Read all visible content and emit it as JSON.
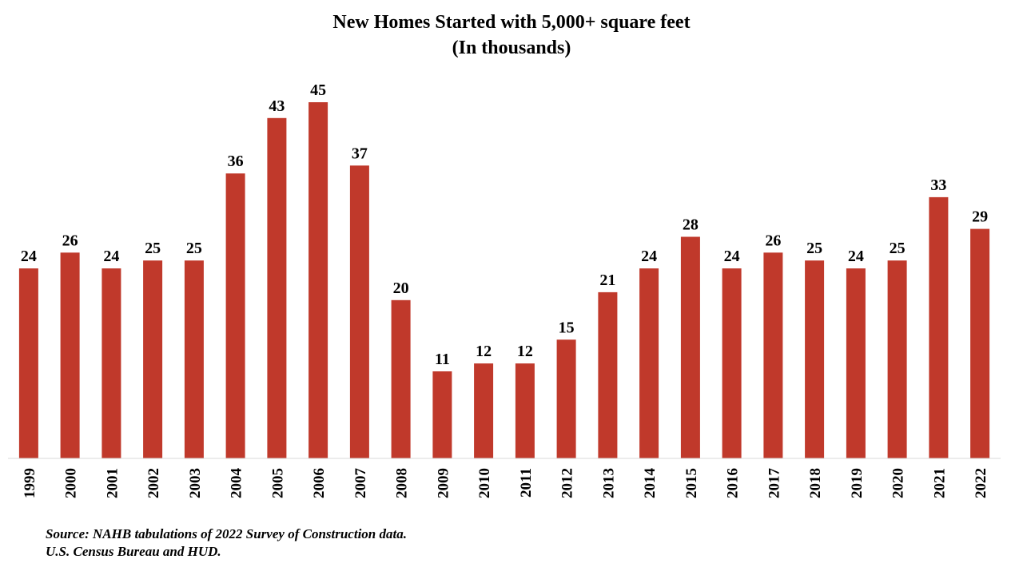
{
  "chart_data": {
    "type": "bar",
    "title": "New Homes Started with 5,000+ square feet",
    "subtitle": "(In thousands)",
    "categories": [
      "1999",
      "2000",
      "2001",
      "2002",
      "2003",
      "2004",
      "2005",
      "2006",
      "2007",
      "2008",
      "2009",
      "2010",
      "2011",
      "2012",
      "2013",
      "2014",
      "2015",
      "2016",
      "2017",
      "2018",
      "2019",
      "2020",
      "2021",
      "2022"
    ],
    "values": [
      24,
      26,
      24,
      25,
      25,
      36,
      43,
      45,
      37,
      20,
      11,
      12,
      12,
      15,
      21,
      24,
      28,
      24,
      26,
      25,
      24,
      25,
      33,
      29
    ],
    "ylim": [
      0,
      45
    ],
    "grid": false,
    "legend": "none",
    "bar_color": "#c0392b",
    "axis_color": "#d9d9d9"
  },
  "source": {
    "line1": "Source: NAHB tabulations of 2022 Survey of Construction data.",
    "line2": "U.S. Census Bureau and HUD."
  }
}
